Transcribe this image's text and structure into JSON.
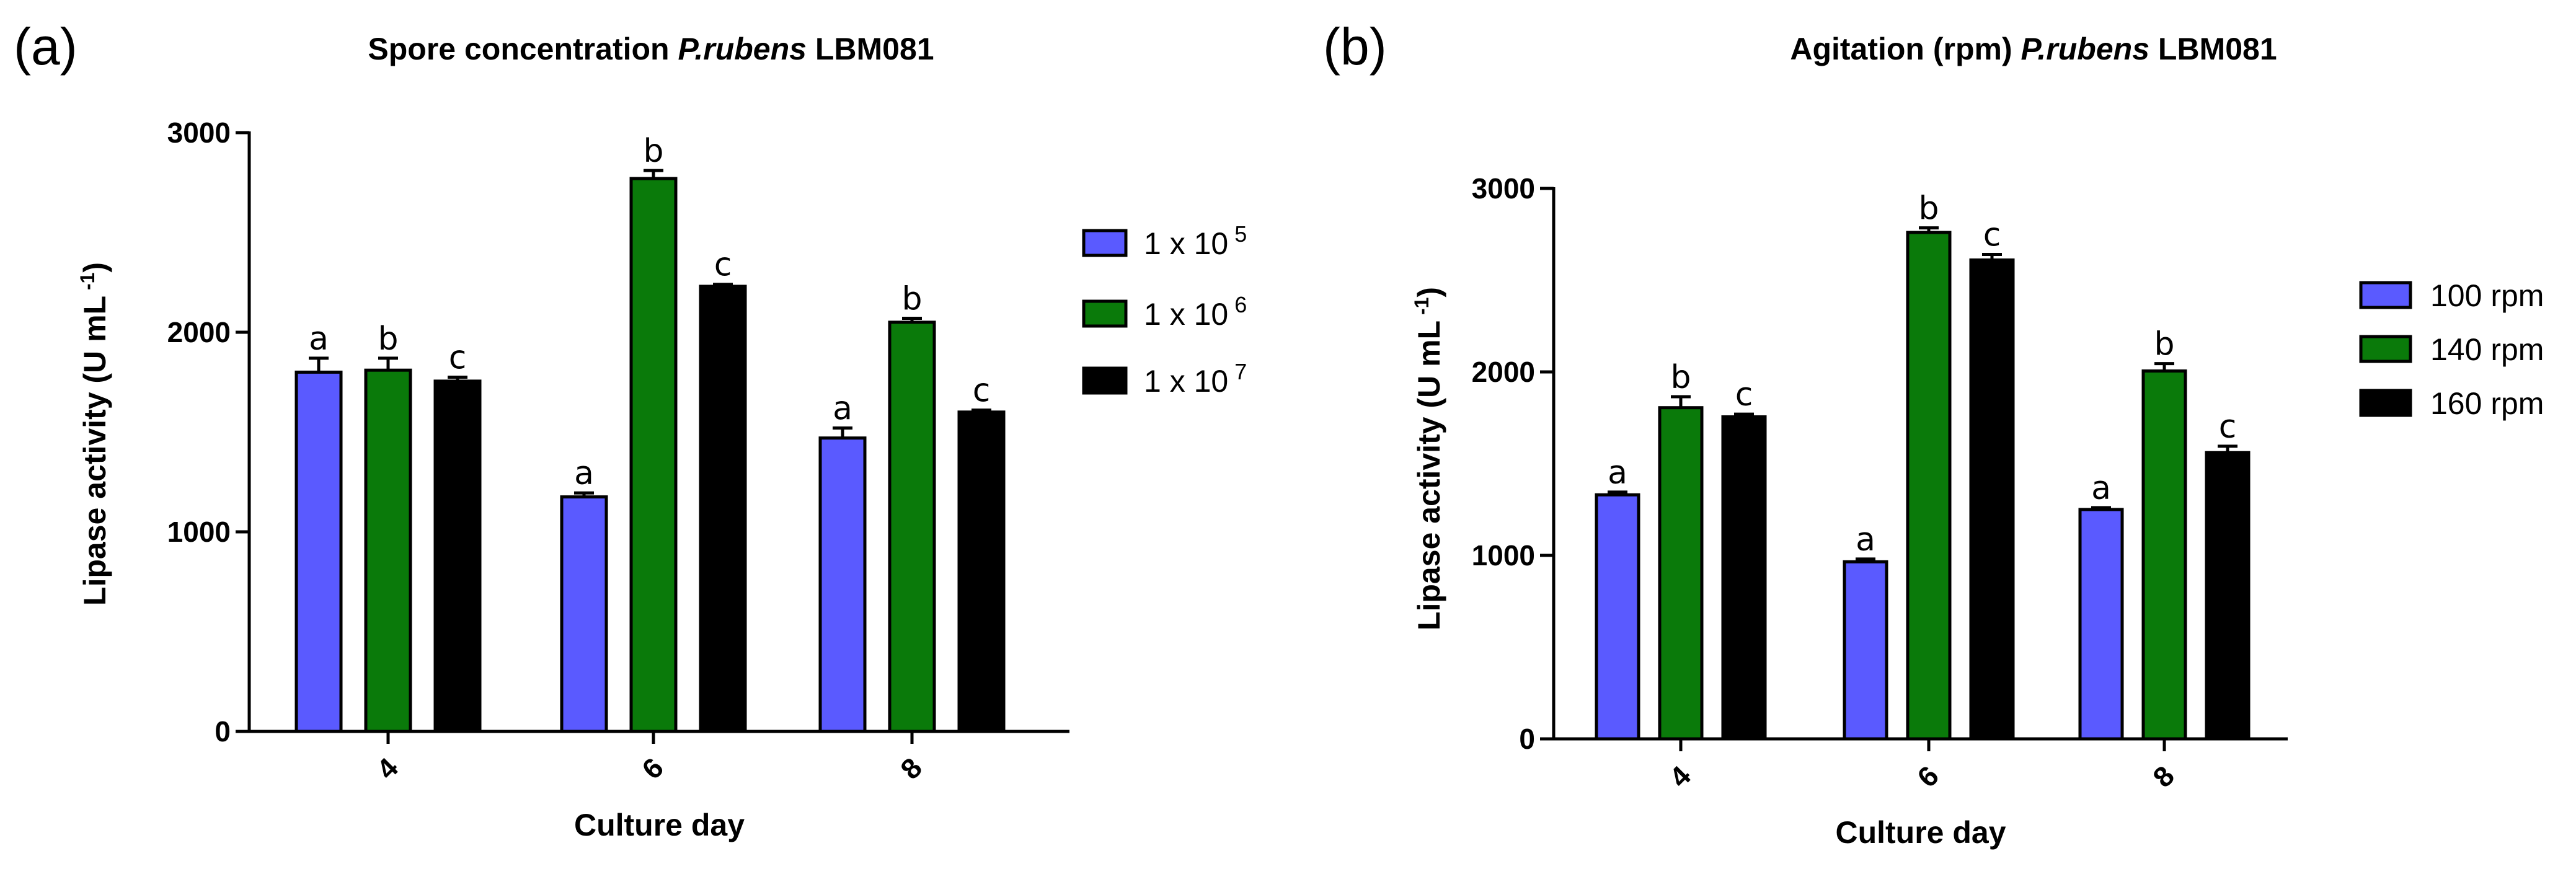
{
  "chart_data": [
    {
      "type": "bar",
      "panel": "(a)",
      "title_prefix": "Spore concentration ",
      "title_species": "P.rubens",
      "title_strain": " LBM081",
      "xlabel": "Culture day",
      "ylabel": "Lipase activity (U mL",
      "ylabel_sup": "-1",
      "ylabel_suffix": ")",
      "ylim": [
        0,
        3000
      ],
      "yticks": [
        0,
        1000,
        2000,
        3000
      ],
      "categories": [
        "4",
        "6",
        "8"
      ],
      "series": [
        {
          "name": "1 x 10",
          "name_sup": "5",
          "color": "#5a5aff",
          "values": [
            1800,
            1175,
            1470
          ],
          "errors": [
            70,
            20,
            50
          ],
          "letters": [
            "a",
            "a",
            "a"
          ]
        },
        {
          "name": "1 x 10",
          "name_sup": "6",
          "color": "#0a7a0a",
          "values": [
            1810,
            2770,
            2050
          ],
          "errors": [
            60,
            40,
            20
          ],
          "letters": [
            "b",
            "b",
            "b"
          ]
        },
        {
          "name": "1 x 10",
          "name_sup": "7",
          "color": "#000000",
          "values": [
            1755,
            2230,
            1600
          ],
          "errors": [
            20,
            10,
            10
          ],
          "letters": [
            "c",
            "c",
            "c"
          ]
        }
      ]
    },
    {
      "type": "bar",
      "panel": "(b)",
      "title_prefix": "Agitation (rpm) ",
      "title_species": "P.rubens",
      "title_strain": " LBM081",
      "xlabel": "Culture day",
      "ylabel": "Lipase activity (U mL",
      "ylabel_sup": "-1",
      "ylabel_suffix": ")",
      "ylim": [
        0,
        3000
      ],
      "yticks": [
        0,
        1000,
        2000,
        3000
      ],
      "categories": [
        "4",
        "6",
        "8"
      ],
      "series": [
        {
          "name": "100 rpm",
          "name_sup": "",
          "color": "#5a5aff",
          "values": [
            1330,
            965,
            1250
          ],
          "errors": [
            15,
            15,
            10
          ],
          "letters": [
            "a",
            "a",
            "a"
          ]
        },
        {
          "name": "140 rpm",
          "name_sup": "",
          "color": "#0a7a0a",
          "values": [
            1805,
            2760,
            2005
          ],
          "errors": [
            60,
            25,
            40
          ],
          "letters": [
            "b",
            "b",
            "b"
          ]
        },
        {
          "name": "160 rpm",
          "name_sup": "",
          "color": "#000000",
          "values": [
            1755,
            2610,
            1560
          ],
          "errors": [
            15,
            30,
            35
          ],
          "letters": [
            "c",
            "c",
            "c"
          ]
        }
      ]
    }
  ]
}
